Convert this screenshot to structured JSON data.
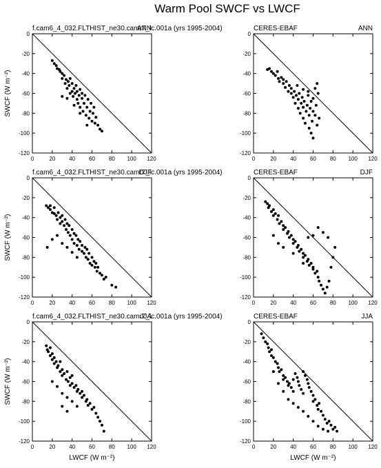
{
  "figure": {
    "title": "Warm Pool SWCF vs LWCF"
  },
  "chart_data": [
    {
      "type": "scatter",
      "left_title": "f.cam6_4_032.FLTHIST_ne30.camr7_lc.001a (yrs 1995-2004)",
      "right_title": "ANN",
      "xlabel": "",
      "ylabel": "SWCF (W m⁻²)",
      "xlim": [
        0,
        120
      ],
      "ylim": [
        -120,
        0
      ],
      "xticks": [
        0,
        20,
        40,
        60,
        80,
        100,
        120
      ],
      "yticks": [
        0,
        -20,
        -40,
        -60,
        -80,
        -100,
        -120
      ],
      "reference_line": "y = -x",
      "points": [
        [
          20,
          -27
        ],
        [
          22,
          -30
        ],
        [
          24,
          -32
        ],
        [
          25,
          -35
        ],
        [
          27,
          -36
        ],
        [
          28,
          -38
        ],
        [
          30,
          -40
        ],
        [
          30,
          -45
        ],
        [
          32,
          -42
        ],
        [
          33,
          -50
        ],
        [
          34,
          -46
        ],
        [
          35,
          -55
        ],
        [
          36,
          -48
        ],
        [
          37,
          -52
        ],
        [
          38,
          -60
        ],
        [
          38,
          -45
        ],
        [
          40,
          -50
        ],
        [
          40,
          -58
        ],
        [
          41,
          -63
        ],
        [
          42,
          -55
        ],
        [
          43,
          -60
        ],
        [
          44,
          -52
        ],
        [
          45,
          -66
        ],
        [
          45,
          -58
        ],
        [
          46,
          -70
        ],
        [
          47,
          -62
        ],
        [
          48,
          -56
        ],
        [
          48,
          -74
        ],
        [
          50,
          -65
        ],
        [
          50,
          -60
        ],
        [
          51,
          -78
        ],
        [
          52,
          -70
        ],
        [
          53,
          -62
        ],
        [
          54,
          -82
        ],
        [
          55,
          -74
        ],
        [
          56,
          -66
        ],
        [
          57,
          -85
        ],
        [
          58,
          -78
        ],
        [
          59,
          -70
        ],
        [
          60,
          -88
        ],
        [
          61,
          -80
        ],
        [
          62,
          -74
        ],
        [
          63,
          -90
        ],
        [
          64,
          -84
        ],
        [
          66,
          -92
        ],
        [
          68,
          -96
        ],
        [
          70,
          -98
        ],
        [
          30,
          -63
        ],
        [
          35,
          -65
        ],
        [
          42,
          -72
        ],
        [
          48,
          -80
        ],
        [
          55,
          -92
        ]
      ]
    },
    {
      "type": "scatter",
      "left_title": "CERES-EBAF",
      "right_title": "ANN",
      "xlabel": "",
      "ylabel": "",
      "xlim": [
        0,
        120
      ],
      "ylim": [
        -120,
        0
      ],
      "xticks": [
        0,
        20,
        40,
        60,
        80,
        100,
        120
      ],
      "yticks": [
        0,
        -20,
        -40,
        -60,
        -80,
        -100,
        -120
      ],
      "reference_line": "y = -x",
      "points": [
        [
          14,
          -36
        ],
        [
          16,
          -35
        ],
        [
          18,
          -38
        ],
        [
          20,
          -40
        ],
        [
          22,
          -42
        ],
        [
          24,
          -38
        ],
        [
          25,
          -45
        ],
        [
          26,
          -48
        ],
        [
          28,
          -44
        ],
        [
          30,
          -50
        ],
        [
          30,
          -46
        ],
        [
          32,
          -54
        ],
        [
          33,
          -48
        ],
        [
          35,
          -58
        ],
        [
          36,
          -52
        ],
        [
          38,
          -60
        ],
        [
          38,
          -55
        ],
        [
          40,
          -64
        ],
        [
          41,
          -58
        ],
        [
          42,
          -70
        ],
        [
          43,
          -62
        ],
        [
          44,
          -52
        ],
        [
          45,
          -75
        ],
        [
          45,
          -66
        ],
        [
          46,
          -60
        ],
        [
          47,
          -80
        ],
        [
          48,
          -70
        ],
        [
          49,
          -64
        ],
        [
          50,
          -85
        ],
        [
          50,
          -74
        ],
        [
          51,
          -68
        ],
        [
          52,
          -90
        ],
        [
          53,
          -78
        ],
        [
          54,
          -72
        ],
        [
          55,
          -62
        ],
        [
          56,
          -95
        ],
        [
          56,
          -82
        ],
        [
          57,
          -75
        ],
        [
          58,
          -68
        ],
        [
          59,
          -88
        ],
        [
          60,
          -78
        ],
        [
          60,
          -65
        ],
        [
          62,
          -82
        ],
        [
          63,
          -72
        ],
        [
          64,
          -92
        ],
        [
          62,
          -55
        ],
        [
          64,
          -50
        ],
        [
          65,
          -60
        ],
        [
          60,
          -105
        ],
        [
          58,
          -100
        ],
        [
          66,
          -85
        ],
        [
          55,
          -58
        ],
        [
          50,
          -56
        ]
      ]
    },
    {
      "type": "scatter",
      "left_title": "f.cam6_4_032.FLTHIST_ne30.camr7_lc.001a (yrs 1995-2004)",
      "right_title": "DJF",
      "xlabel": "",
      "ylabel": "SWCF (W m⁻²)",
      "xlim": [
        0,
        120
      ],
      "ylim": [
        -120,
        0
      ],
      "xticks": [
        0,
        20,
        40,
        60,
        80,
        100,
        120
      ],
      "yticks": [
        0,
        -20,
        -40,
        -60,
        -80,
        -100,
        -120
      ],
      "reference_line": "y = -x",
      "points": [
        [
          14,
          -28
        ],
        [
          16,
          -30
        ],
        [
          18,
          -32
        ],
        [
          18,
          -28
        ],
        [
          20,
          -35
        ],
        [
          22,
          -36
        ],
        [
          22,
          -30
        ],
        [
          24,
          -38
        ],
        [
          25,
          -42
        ],
        [
          26,
          -35
        ],
        [
          28,
          -40
        ],
        [
          28,
          -46
        ],
        [
          30,
          -38
        ],
        [
          30,
          -44
        ],
        [
          32,
          -48
        ],
        [
          33,
          -42
        ],
        [
          34,
          -52
        ],
        [
          35,
          -46
        ],
        [
          36,
          -55
        ],
        [
          37,
          -48
        ],
        [
          38,
          -58
        ],
        [
          40,
          -52
        ],
        [
          40,
          -62
        ],
        [
          42,
          -56
        ],
        [
          42,
          -66
        ],
        [
          44,
          -58
        ],
        [
          45,
          -68
        ],
        [
          46,
          -62
        ],
        [
          47,
          -72
        ],
        [
          48,
          -64
        ],
        [
          50,
          -74
        ],
        [
          50,
          -68
        ],
        [
          52,
          -76
        ],
        [
          53,
          -70
        ],
        [
          54,
          -80
        ],
        [
          55,
          -72
        ],
        [
          56,
          -82
        ],
        [
          57,
          -76
        ],
        [
          58,
          -86
        ],
        [
          60,
          -80
        ],
        [
          60,
          -88
        ],
        [
          62,
          -84
        ],
        [
          63,
          -90
        ],
        [
          64,
          -86
        ],
        [
          65,
          -94
        ],
        [
          66,
          -90
        ],
        [
          68,
          -96
        ],
        [
          70,
          -98
        ],
        [
          72,
          -102
        ],
        [
          74,
          -100
        ],
        [
          80,
          -108
        ],
        [
          84,
          -110
        ],
        [
          15,
          -70
        ],
        [
          20,
          -62
        ],
        [
          25,
          -58
        ],
        [
          30,
          -66
        ],
        [
          35,
          -70
        ],
        [
          40,
          -75
        ],
        [
          45,
          -80
        ]
      ]
    },
    {
      "type": "scatter",
      "left_title": "CERES-EBAF",
      "right_title": "DJF",
      "xlabel": "",
      "ylabel": "",
      "xlim": [
        0,
        120
      ],
      "ylim": [
        -120,
        0
      ],
      "xticks": [
        0,
        20,
        40,
        60,
        80,
        100,
        120
      ],
      "yticks": [
        0,
        -20,
        -40,
        -60,
        -80,
        -100,
        -120
      ],
      "reference_line": "y = -x",
      "points": [
        [
          12,
          -24
        ],
        [
          14,
          -26
        ],
        [
          15,
          -30
        ],
        [
          16,
          -28
        ],
        [
          18,
          -34
        ],
        [
          20,
          -32
        ],
        [
          20,
          -38
        ],
        [
          22,
          -36
        ],
        [
          24,
          -42
        ],
        [
          25,
          -38
        ],
        [
          26,
          -46
        ],
        [
          28,
          -44
        ],
        [
          30,
          -48
        ],
        [
          30,
          -52
        ],
        [
          32,
          -50
        ],
        [
          34,
          -56
        ],
        [
          35,
          -54
        ],
        [
          36,
          -60
        ],
        [
          38,
          -58
        ],
        [
          40,
          -62
        ],
        [
          40,
          -66
        ],
        [
          42,
          -64
        ],
        [
          44,
          -70
        ],
        [
          45,
          -68
        ],
        [
          46,
          -74
        ],
        [
          48,
          -72
        ],
        [
          50,
          -76
        ],
        [
          50,
          -80
        ],
        [
          52,
          -78
        ],
        [
          54,
          -84
        ],
        [
          55,
          -82
        ],
        [
          56,
          -88
        ],
        [
          58,
          -86
        ],
        [
          60,
          -92
        ],
        [
          60,
          -90
        ],
        [
          62,
          -96
        ],
        [
          64,
          -94
        ],
        [
          65,
          -100
        ],
        [
          66,
          -104
        ],
        [
          68,
          -108
        ],
        [
          70,
          -112
        ],
        [
          72,
          -116
        ],
        [
          74,
          -110
        ],
        [
          76,
          -104
        ],
        [
          78,
          -90
        ],
        [
          80,
          -80
        ],
        [
          82,
          -70
        ],
        [
          75,
          -60
        ],
        [
          70,
          -55
        ],
        [
          65,
          -50
        ],
        [
          60,
          -58
        ],
        [
          55,
          -60
        ],
        [
          20,
          -58
        ],
        [
          25,
          -66
        ],
        [
          30,
          -70
        ],
        [
          40,
          -76
        ],
        [
          50,
          -86
        ]
      ]
    },
    {
      "type": "scatter",
      "left_title": "f.cam6_4_032.FLTHIST_ne30.camr7_lc.001a (yrs 1995-2004)",
      "right_title": "JJA",
      "xlabel": "LWCF (W m⁻²)",
      "ylabel": "SWCF (W m⁻²)",
      "xlim": [
        0,
        120
      ],
      "ylim": [
        -120,
        0
      ],
      "xticks": [
        0,
        20,
        40,
        60,
        80,
        100,
        120
      ],
      "yticks": [
        0,
        -20,
        -40,
        -60,
        -80,
        -100,
        -120
      ],
      "reference_line": "y = -x",
      "points": [
        [
          14,
          -24
        ],
        [
          15,
          -28
        ],
        [
          16,
          -30
        ],
        [
          18,
          -26
        ],
        [
          18,
          -34
        ],
        [
          20,
          -32
        ],
        [
          20,
          -38
        ],
        [
          22,
          -36
        ],
        [
          22,
          -42
        ],
        [
          24,
          -40
        ],
        [
          25,
          -46
        ],
        [
          26,
          -44
        ],
        [
          28,
          -50
        ],
        [
          28,
          -40
        ],
        [
          30,
          -48
        ],
        [
          30,
          -54
        ],
        [
          32,
          -52
        ],
        [
          34,
          -58
        ],
        [
          35,
          -50
        ],
        [
          36,
          -60
        ],
        [
          38,
          -56
        ],
        [
          38,
          -64
        ],
        [
          40,
          -62
        ],
        [
          40,
          -54
        ],
        [
          42,
          -66
        ],
        [
          44,
          -64
        ],
        [
          45,
          -70
        ],
        [
          46,
          -68
        ],
        [
          48,
          -72
        ],
        [
          50,
          -70
        ],
        [
          50,
          -76
        ],
        [
          52,
          -74
        ],
        [
          54,
          -80
        ],
        [
          55,
          -78
        ],
        [
          56,
          -84
        ],
        [
          58,
          -82
        ],
        [
          60,
          -88
        ],
        [
          62,
          -86
        ],
        [
          64,
          -92
        ],
        [
          66,
          -96
        ],
        [
          68,
          -100
        ],
        [
          70,
          -104
        ],
        [
          72,
          -110
        ],
        [
          20,
          -60
        ],
        [
          25,
          -65
        ],
        [
          30,
          -72
        ],
        [
          35,
          -76
        ],
        [
          40,
          -80
        ],
        [
          45,
          -85
        ],
        [
          30,
          -85
        ],
        [
          35,
          -90
        ]
      ]
    },
    {
      "type": "scatter",
      "left_title": "CERES-EBAF",
      "right_title": "JJA",
      "xlabel": "LWCF (W m⁻²)",
      "ylabel": "",
      "xlim": [
        0,
        120
      ],
      "ylim": [
        -120,
        0
      ],
      "xticks": [
        0,
        20,
        40,
        60,
        80,
        100,
        120
      ],
      "yticks": [
        0,
        -20,
        -40,
        -60,
        -80,
        -100,
        -120
      ],
      "reference_line": "y = -x",
      "points": [
        [
          8,
          -12
        ],
        [
          10,
          -16
        ],
        [
          12,
          -20
        ],
        [
          14,
          -22
        ],
        [
          15,
          -26
        ],
        [
          16,
          -30
        ],
        [
          18,
          -28
        ],
        [
          18,
          -34
        ],
        [
          20,
          -36
        ],
        [
          22,
          -40
        ],
        [
          24,
          -42
        ],
        [
          25,
          -46
        ],
        [
          26,
          -50
        ],
        [
          28,
          -48
        ],
        [
          30,
          -54
        ],
        [
          30,
          -58
        ],
        [
          32,
          -56
        ],
        [
          34,
          -60
        ],
        [
          35,
          -64
        ],
        [
          36,
          -62
        ],
        [
          38,
          -66
        ],
        [
          40,
          -70
        ],
        [
          40,
          -58
        ],
        [
          42,
          -52
        ],
        [
          44,
          -56
        ],
        [
          45,
          -60
        ],
        [
          46,
          -64
        ],
        [
          48,
          -68
        ],
        [
          50,
          -72
        ],
        [
          50,
          -50
        ],
        [
          52,
          -54
        ],
        [
          54,
          -58
        ],
        [
          55,
          -62
        ],
        [
          56,
          -66
        ],
        [
          58,
          -70
        ],
        [
          60,
          -74
        ],
        [
          60,
          -80
        ],
        [
          62,
          -78
        ],
        [
          64,
          -84
        ],
        [
          65,
          -88
        ],
        [
          66,
          -82
        ],
        [
          68,
          -90
        ],
        [
          70,
          -94
        ],
        [
          72,
          -98
        ],
        [
          74,
          -102
        ],
        [
          76,
          -100
        ],
        [
          78,
          -104
        ],
        [
          80,
          -108
        ],
        [
          82,
          -106
        ],
        [
          84,
          -110
        ],
        [
          20,
          -50
        ],
        [
          25,
          -62
        ],
        [
          30,
          -70
        ],
        [
          35,
          -78
        ],
        [
          40,
          -82
        ],
        [
          45,
          -86
        ],
        [
          50,
          -90
        ],
        [
          55,
          -95
        ],
        [
          60,
          -100
        ],
        [
          65,
          -105
        ],
        [
          70,
          -108
        ],
        [
          75,
          -110
        ]
      ]
    }
  ]
}
